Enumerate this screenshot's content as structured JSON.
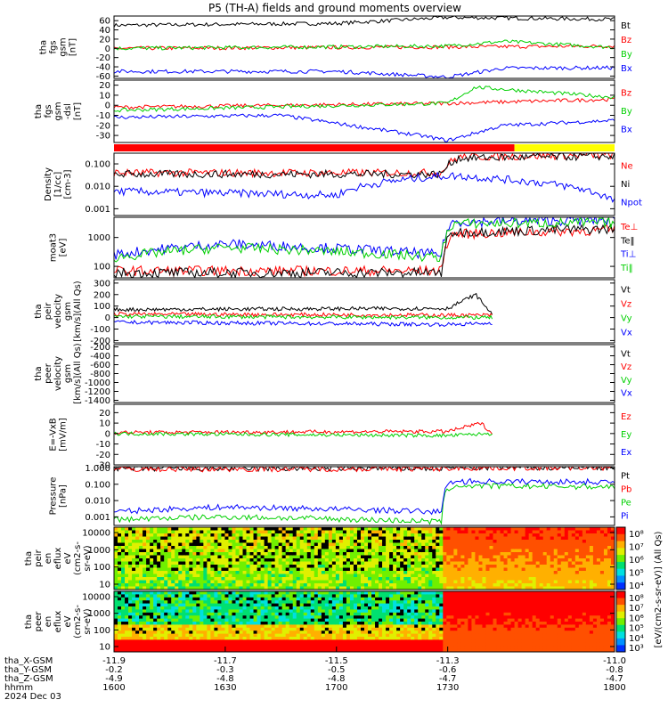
{
  "title": "P5 (TH-A) fields and ground moments overview",
  "colors": {
    "black": "#000000",
    "red": "#ff0000",
    "green": "#00d000",
    "blue": "#0000ff",
    "yellow": "#ffff00"
  },
  "chart_data": [
    {
      "id": "bgsm",
      "type": "line",
      "ylabel": [
        "tha",
        "fgs",
        "gsm",
        "[nT]"
      ],
      "yticks": [
        60,
        40,
        20,
        0,
        -20,
        -40,
        -60
      ],
      "ylim": [
        -65,
        70
      ],
      "series": [
        {
          "name": "Bt",
          "color": "#000000",
          "x": [
            -11.9,
            -11.5,
            -11.3,
            -11.0
          ],
          "y": [
            50,
            54,
            67,
            63
          ]
        },
        {
          "name": "Bz",
          "color": "#ff0000",
          "x": [
            -11.9,
            -11.3,
            -11.0
          ],
          "y": [
            0,
            3,
            5
          ]
        },
        {
          "name": "By",
          "color": "#00d000",
          "x": [
            -11.9,
            -11.3,
            -11.2,
            -11.0
          ],
          "y": [
            0,
            5,
            15,
            2
          ]
        },
        {
          "name": "Bx",
          "color": "#0000ff",
          "x": [
            -11.9,
            -11.5,
            -11.3,
            -11.2,
            -11.0
          ],
          "y": [
            -50,
            -50,
            -62,
            -43,
            -42
          ]
        }
      ]
    },
    {
      "id": "bfgs",
      "type": "line",
      "ylabel": [
        "tha",
        "fgs",
        "gsm",
        "-dsl",
        "[nT]"
      ],
      "yticks": [
        20,
        10,
        0,
        -10,
        -20,
        -30
      ],
      "ylim": [
        -37,
        25
      ],
      "series": [
        {
          "name": "Bz",
          "color": "#ff0000",
          "x": [
            -11.9,
            -11.3,
            -11.0
          ],
          "y": [
            -2,
            2,
            6
          ]
        },
        {
          "name": "By",
          "color": "#00d000",
          "x": [
            -11.9,
            -11.3,
            -11.25,
            -11.0
          ],
          "y": [
            -5,
            2,
            18,
            8
          ]
        },
        {
          "name": "Bx",
          "color": "#0000ff",
          "x": [
            -11.9,
            -11.6,
            -11.35,
            -11.3,
            -11.2,
            -11.0
          ],
          "y": [
            -12,
            -10,
            -30,
            -35,
            -20,
            -15
          ]
        }
      ]
    },
    {
      "id": "mode",
      "type": "bar",
      "segments": [
        {
          "x0": -11.9,
          "x1": -11.18,
          "color": "#ff0000"
        },
        {
          "x0": -11.18,
          "x1": -11.0,
          "color": "#ffff00"
        }
      ]
    },
    {
      "id": "density",
      "type": "line",
      "log": true,
      "ylabel": [
        "Density",
        "[1/cc]",
        "[cm-3]"
      ],
      "yticks": [
        "0.100",
        "0.010",
        "0.001"
      ],
      "ylim": [
        0.0005,
        0.3
      ],
      "series": [
        {
          "name": "Ne",
          "color": "#ff0000",
          "x": [
            -11.9,
            -11.31,
            -11.28,
            -11.0
          ],
          "y": [
            0.04,
            0.04,
            0.2,
            0.25
          ]
        },
        {
          "name": "Ni",
          "color": "#000000",
          "x": [
            -11.9,
            -11.31,
            -11.28,
            -11.0
          ],
          "y": [
            0.035,
            0.035,
            0.18,
            0.22
          ]
        },
        {
          "name": "Npot",
          "color": "#0000ff",
          "x": [
            -11.9,
            -11.5,
            -11.3,
            -11.0
          ],
          "y": [
            0.006,
            0.004,
            0.03,
            0.002
          ]
        }
      ]
    },
    {
      "id": "temp",
      "type": "line",
      "log": true,
      "ylabel": [
        "moat3",
        "[eV]"
      ],
      "yticks": [
        "1000",
        "100"
      ],
      "ylim": [
        40,
        5000
      ],
      "series": [
        {
          "name": "Te⊥",
          "color": "#ff0000",
          "x": [
            -11.9,
            -11.31,
            -11.29,
            -11.0
          ],
          "y": [
            70,
            70,
            1300,
            1800
          ]
        },
        {
          "name": "Te‖",
          "color": "#000000",
          "x": [
            -11.9,
            -11.31,
            -11.29,
            -11.0
          ],
          "y": [
            60,
            60,
            1500,
            2000
          ]
        },
        {
          "name": "Ti⊥",
          "color": "#0000ff",
          "x": [
            -11.9,
            -11.7,
            -11.31,
            -11.29,
            -11.0
          ],
          "y": [
            250,
            600,
            250,
            3500,
            4000
          ]
        },
        {
          "name": "Ti‖",
          "color": "#00d000",
          "x": [
            -11.9,
            -11.7,
            -11.31,
            -11.29,
            -11.0
          ],
          "y": [
            200,
            450,
            200,
            3000,
            3300
          ]
        }
      ]
    },
    {
      "id": "peir_v",
      "type": "line",
      "ylabel": [
        "tha",
        "peir",
        "velocity",
        "gsm",
        "[km/s](All Qs)"
      ],
      "yticks": [
        300,
        200,
        100,
        0,
        -100,
        -200
      ],
      "ylim": [
        -220,
        330
      ],
      "series": [
        {
          "name": "Vt",
          "color": "#000000",
          "x": [
            -11.9,
            -11.3,
            -11.25,
            -11.22
          ],
          "y": [
            70,
            80,
            200,
            30
          ]
        },
        {
          "name": "Vz",
          "color": "#ff0000",
          "x": [
            -11.9,
            -11.22
          ],
          "y": [
            30,
            20
          ]
        },
        {
          "name": "Vy",
          "color": "#00d000",
          "x": [
            -11.9,
            -11.22
          ],
          "y": [
            10,
            0
          ]
        },
        {
          "name": "Vx",
          "color": "#0000ff",
          "x": [
            -11.9,
            -11.3,
            -11.22
          ],
          "y": [
            -40,
            -60,
            -50
          ]
        }
      ]
    },
    {
      "id": "peer_v",
      "type": "line",
      "ylabel": [
        "tha",
        "peer",
        "velocity",
        "gsm",
        "[km/s](All Qs)"
      ],
      "yticks": [
        -200,
        -400,
        -600,
        -800,
        -1000,
        -1200,
        -1400
      ],
      "ylim": [
        -1450,
        -150
      ],
      "series": [
        {
          "name": "Vt",
          "color": "#000000",
          "x": [],
          "y": []
        },
        {
          "name": "Vz",
          "color": "#ff0000",
          "x": [],
          "y": []
        },
        {
          "name": "Vy",
          "color": "#00d000",
          "x": [],
          "y": []
        },
        {
          "name": "Vx",
          "color": "#0000ff",
          "x": [],
          "y": []
        }
      ]
    },
    {
      "id": "efield",
      "type": "line",
      "ylabel": [
        "E=-VxB",
        "[mV/m]"
      ],
      "yticks": [
        20,
        10,
        0,
        -10,
        -20,
        -30
      ],
      "ylim": [
        -30,
        28
      ],
      "series": [
        {
          "name": "Ez",
          "color": "#ff0000",
          "x": [
            -11.9,
            -11.3,
            -11.24,
            -11.22
          ],
          "y": [
            1,
            2,
            10,
            0
          ]
        },
        {
          "name": "Ey",
          "color": "#00d000",
          "x": [
            -11.9,
            -11.3,
            -11.22
          ],
          "y": [
            0,
            -2,
            0
          ]
        },
        {
          "name": "Ex",
          "color": "#0000ff",
          "x": [],
          "y": []
        }
      ]
    },
    {
      "id": "pressure",
      "type": "line",
      "log": true,
      "ylabel": [
        "Pressure",
        "[nPa]"
      ],
      "yticks": [
        "1.000",
        "0.100",
        "0.010",
        "0.001"
      ],
      "ylim": [
        0.0003,
        1.2
      ],
      "series": [
        {
          "name": "Pt",
          "color": "#000000",
          "x": [
            -11.9,
            -11.31,
            -11.29,
            -11.0
          ],
          "y": [
            0.9,
            0.95,
            1.05,
            1.1
          ]
        },
        {
          "name": "Pb",
          "color": "#ff0000",
          "x": [
            -11.9,
            -11.31,
            -11.29,
            -11.0
          ],
          "y": [
            0.85,
            0.9,
            1.0,
            1.05
          ]
        },
        {
          "name": "Pe",
          "color": "#00d000",
          "x": [
            -11.9,
            -11.7,
            -11.31,
            -11.29,
            -11.0
          ],
          "y": [
            0.0007,
            0.001,
            0.0005,
            0.08,
            0.07
          ]
        },
        {
          "name": "Pi",
          "color": "#0000ff",
          "x": [
            -11.9,
            -11.7,
            -11.31,
            -11.29,
            -11.0
          ],
          "y": [
            0.002,
            0.004,
            0.002,
            0.15,
            0.14
          ]
        }
      ]
    },
    {
      "id": "peir_en",
      "type": "heatmap",
      "ylabel": [
        "tha",
        "peir",
        "en",
        "eflux",
        "eV",
        "(cm2-s-",
        "sr-eV)"
      ],
      "yticks": [
        "10000",
        "1000",
        "100",
        "10"
      ]
    },
    {
      "id": "peer_en",
      "type": "heatmap",
      "ylabel": [
        "tha",
        "peer",
        "en",
        "eflux",
        "eV",
        "(cm2-s-",
        "sr-eV)"
      ],
      "yticks": [
        "10000",
        "1000",
        "100",
        "10"
      ]
    }
  ],
  "xaxis": {
    "rows": [
      {
        "label": "tha_X-GSM",
        "values": [
          "-11.9",
          "-11.7",
          "-11.5",
          "-11.3",
          "-11.0"
        ]
      },
      {
        "label": "tha_Y-GSM",
        "values": [
          "-0.2",
          "-0.3",
          "-0.5",
          "-0.6",
          "-0.8"
        ]
      },
      {
        "label": "tha_Z-GSM",
        "values": [
          "-4.9",
          "-4.8",
          "-4.8",
          "-4.7",
          "-4.7"
        ]
      },
      {
        "label": "hhmm",
        "values": [
          "1600",
          "1630",
          "1700",
          "1730",
          "1800"
        ]
      }
    ],
    "date": "2024 Dec 03"
  },
  "colorbar": {
    "ticks_top": [
      "10⁸",
      "10⁷",
      "10⁶",
      "10⁵",
      "10⁴"
    ],
    "ticks_bottom": [
      "10⁸",
      "10⁷",
      "10⁶",
      "10⁵",
      "10⁴",
      "10³"
    ],
    "label": "[eV/(cm2-s-sr-eV)] (All Qs)"
  }
}
